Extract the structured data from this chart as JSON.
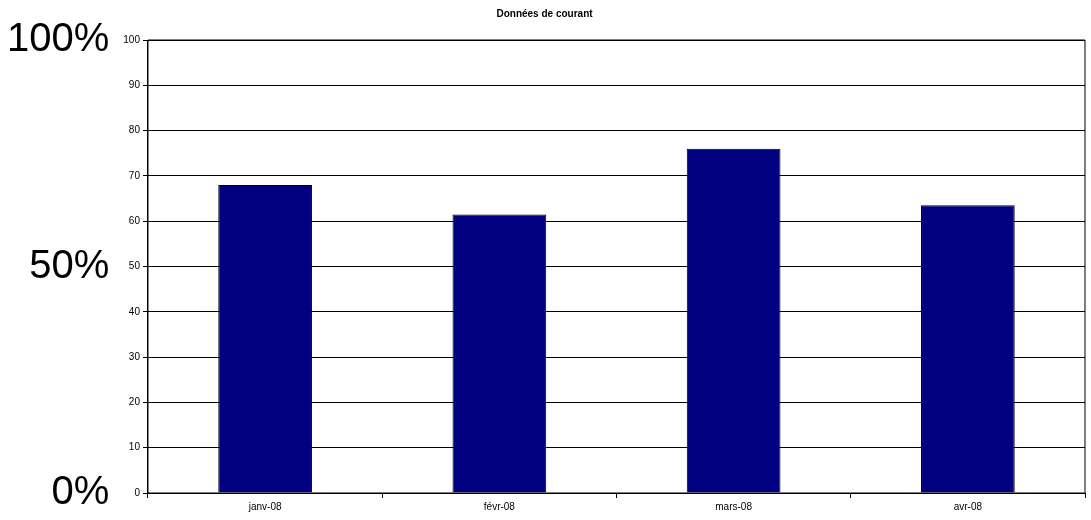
{
  "chart_data": {
    "type": "bar",
    "title": "Données de courant",
    "categories": [
      "janv-08",
      "févr-08",
      "mars-08",
      "avr-08"
    ],
    "series": [
      {
        "color": "#000080",
        "values": [
          68,
          61.5,
          76,
          63.5
        ]
      }
    ],
    "ylim": [
      0,
      100
    ],
    "yticks": [
      0,
      10,
      20,
      30,
      40,
      50,
      60,
      70,
      80,
      90,
      100
    ],
    "y2lim": [
      0,
      100
    ],
    "y2ticks": [
      {
        "value": 0,
        "label": "0%"
      },
      {
        "value": 50,
        "label": "50%"
      },
      {
        "value": 100,
        "label": "100%"
      }
    ],
    "grid": "y",
    "legend": false
  }
}
